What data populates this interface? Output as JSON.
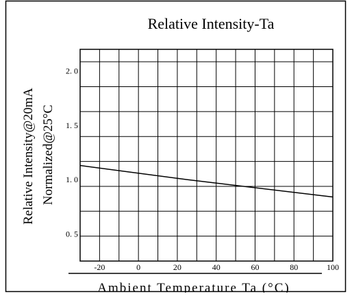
{
  "chart_data": {
    "type": "line",
    "title": "Relative Intensity-Ta",
    "ylabel_line1": "Relative Intensity@20mA",
    "ylabel_line2": "Normalized@25°C",
    "xlabel": "Ambient Temperature Ta (°C)",
    "xlim": [
      -30,
      100
    ],
    "ylim": [
      0.25,
      2.2
    ],
    "x_ticks": [
      {
        "value": -20,
        "label": "-20"
      },
      {
        "value": 0,
        "label": "0"
      },
      {
        "value": 20,
        "label": "20"
      },
      {
        "value": 40,
        "label": "40"
      },
      {
        "value": 60,
        "label": "60"
      },
      {
        "value": 80,
        "label": "80"
      },
      {
        "value": 100,
        "label": "100"
      }
    ],
    "y_ticks": [
      {
        "value": 0.5,
        "label": "0. 5"
      },
      {
        "value": 1.0,
        "label": "1. 0"
      },
      {
        "value": 1.5,
        "label": "1. 5"
      },
      {
        "value": 2.0,
        "label": "2. 0"
      }
    ],
    "series": [
      {
        "color": "#000000",
        "x": [
          -30,
          25,
          100
        ],
        "y": [
          1.13,
          1.0,
          0.84
        ]
      }
    ]
  }
}
